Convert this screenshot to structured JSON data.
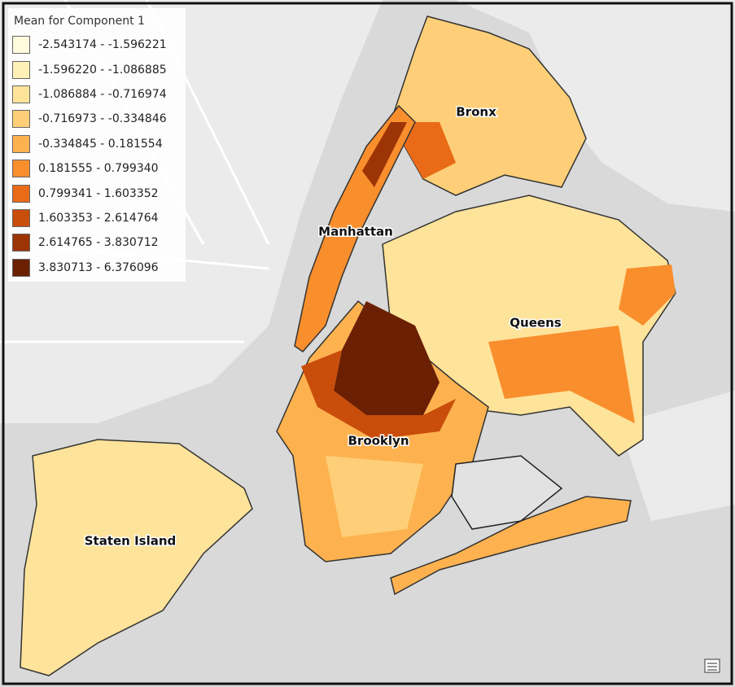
{
  "legend": {
    "title": "Mean for Component 1",
    "items": [
      {
        "label": "-2.543174 - -1.596221",
        "color": "#fffbdc"
      },
      {
        "label": "-1.596220 - -1.086885",
        "color": "#fff0b8"
      },
      {
        "label": "-1.086884 - -0.716974",
        "color": "#fee39a"
      },
      {
        "label": "-0.716973 - -0.334846",
        "color": "#fecf78"
      },
      {
        "label": "-0.334845 - 0.181554",
        "color": "#fdb24f"
      },
      {
        "label": "0.181555 - 0.799340",
        "color": "#f98e2d"
      },
      {
        "label": "0.799341 - 1.603352",
        "color": "#e96b18"
      },
      {
        "label": "1.603353 - 2.614764",
        "color": "#c94d0b"
      },
      {
        "label": "2.614765 - 3.830712",
        "color": "#9c3406"
      },
      {
        "label": "3.830713 - 6.376096",
        "color": "#6b2004"
      }
    ]
  },
  "labels": {
    "bronx": "Bronx",
    "manhattan": "Manhattan",
    "queens": "Queens",
    "brooklyn": "Brooklyn",
    "staten_island": "Staten Island"
  }
}
